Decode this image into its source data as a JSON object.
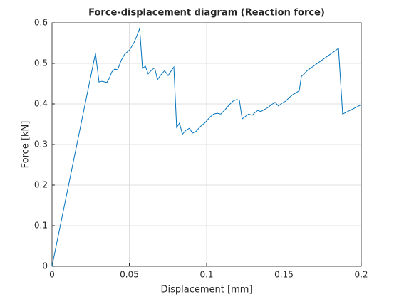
{
  "chart_data": {
    "type": "line",
    "title": "Force-displacement diagram (Reaction force)",
    "xlabel": "Displacement [mm]",
    "ylabel": "Force [kN]",
    "x": [
      0,
      0.0281,
      0.0304,
      0.0323,
      0.0355,
      0.037,
      0.0387,
      0.0406,
      0.0424,
      0.0447,
      0.047,
      0.0502,
      0.053,
      0.0548,
      0.0567,
      0.0585,
      0.0604,
      0.0622,
      0.0645,
      0.0664,
      0.0682,
      0.0705,
      0.0728,
      0.0751,
      0.077,
      0.0788,
      0.0806,
      0.0825,
      0.0843,
      0.0866,
      0.0889,
      0.0908,
      0.0931,
      0.0959,
      0.099,
      0.1023,
      0.1046,
      0.1069,
      0.1092,
      0.112,
      0.1147,
      0.1171,
      0.1194,
      0.1212,
      0.123,
      0.1253,
      0.1272,
      0.1295,
      0.1313,
      0.1332,
      0.135,
      0.1373,
      0.1396,
      0.1419,
      0.1442,
      0.1465,
      0.1488,
      0.1512,
      0.1535,
      0.1558,
      0.1581,
      0.1599,
      0.1613,
      0.1631,
      0.165,
      0.1853,
      0.188,
      0.2
    ],
    "series": [
      {
        "name": "Reaction force",
        "color": "#0072bd",
        "values": [
          0,
          0.525,
          0.454,
          0.456,
          0.453,
          0.463,
          0.479,
          0.486,
          0.484,
          0.507,
          0.523,
          0.533,
          0.551,
          0.567,
          0.586,
          0.488,
          0.493,
          0.474,
          0.484,
          0.489,
          0.46,
          0.472,
          0.482,
          0.47,
          0.481,
          0.491,
          0.342,
          0.353,
          0.325,
          0.335,
          0.34,
          0.328,
          0.332,
          0.344,
          0.354,
          0.368,
          0.375,
          0.377,
          0.375,
          0.386,
          0.398,
          0.407,
          0.411,
          0.409,
          0.363,
          0.37,
          0.375,
          0.372,
          0.379,
          0.384,
          0.381,
          0.386,
          0.391,
          0.398,
          0.404,
          0.395,
          0.402,
          0.407,
          0.416,
          0.423,
          0.428,
          0.433,
          0.468,
          0.474,
          0.482,
          0.537,
          0.375,
          0.398
        ]
      }
    ],
    "xlim": [
      0,
      0.2
    ],
    "xticks": [
      0,
      0.05,
      0.1,
      0.15,
      0.2
    ],
    "ylim": [
      0,
      0.6
    ],
    "yticks": [
      0,
      0.1,
      0.2,
      0.3,
      0.4,
      0.5,
      0.6
    ],
    "grid": true
  }
}
